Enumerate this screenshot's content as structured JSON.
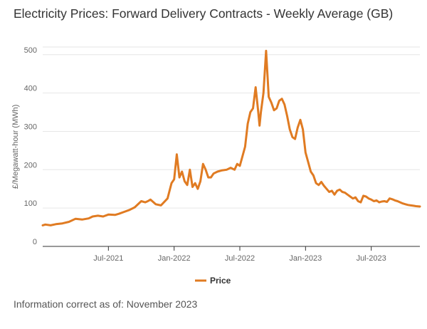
{
  "title": "Electricity Prices: Forward Delivery Contracts - Weekly Average (GB)",
  "footer": "Information correct as of: November 2023",
  "colors": {
    "series": "#e07b22",
    "grid": "#e6e6e6",
    "axis": "#333333"
  },
  "chart_data": {
    "type": "line",
    "title": "Electricity Prices: Forward Delivery Contracts - Weekly Average (GB)",
    "xlabel": "",
    "ylabel": "£/Megawatt-hour (MWh)",
    "ylim": [
      0,
      520
    ],
    "yticks": [
      0,
      100,
      200,
      300,
      400,
      500
    ],
    "xlim": [
      2021.0,
      2023.87
    ],
    "xticks": [
      {
        "label": "Jul-2021",
        "x": 2021.5
      },
      {
        "label": "Jan-2022",
        "x": 2022.0
      },
      {
        "label": "Jul-2022",
        "x": 2022.5
      },
      {
        "label": "Jan-2023",
        "x": 2023.0
      },
      {
        "label": "Jul-2023",
        "x": 2023.5
      }
    ],
    "grid": true,
    "legend": "bottom-center",
    "series": [
      {
        "name": "Price",
        "x": [
          2021.0,
          2021.02,
          2021.06,
          2021.1,
          2021.15,
          2021.2,
          2021.25,
          2021.3,
          2021.35,
          2021.38,
          2021.42,
          2021.46,
          2021.5,
          2021.55,
          2021.58,
          2021.62,
          2021.66,
          2021.7,
          2021.75,
          2021.78,
          2021.8,
          2021.82,
          2021.86,
          2021.9,
          2021.95,
          2021.98,
          2022.0,
          2022.02,
          2022.04,
          2022.06,
          2022.08,
          2022.1,
          2022.12,
          2022.14,
          2022.16,
          2022.18,
          2022.2,
          2022.22,
          2022.24,
          2022.26,
          2022.28,
          2022.3,
          2022.33,
          2022.36,
          2022.4,
          2022.43,
          2022.46,
          2022.48,
          2022.5,
          2022.52,
          2022.54,
          2022.56,
          2022.58,
          2022.6,
          2022.62,
          2022.64,
          2022.65,
          2022.66,
          2022.68,
          2022.7,
          2022.72,
          2022.74,
          2022.76,
          2022.78,
          2022.8,
          2022.82,
          2022.84,
          2022.86,
          2022.88,
          2022.9,
          2022.92,
          2022.94,
          2022.96,
          2022.98,
          2023.0,
          2023.02,
          2023.04,
          2023.06,
          2023.08,
          2023.1,
          2023.12,
          2023.14,
          2023.16,
          2023.18,
          2023.2,
          2023.22,
          2023.24,
          2023.26,
          2023.28,
          2023.3,
          2023.32,
          2023.34,
          2023.36,
          2023.38,
          2023.4,
          2023.42,
          2023.44,
          2023.46,
          2023.48,
          2023.5,
          2023.52,
          2023.54,
          2023.56,
          2023.58,
          2023.6,
          2023.62,
          2023.64,
          2023.66,
          2023.68,
          2023.7,
          2023.72,
          2023.74,
          2023.76,
          2023.78,
          2023.8,
          2023.82,
          2023.84,
          2023.87
        ],
        "y": [
          55,
          57,
          55,
          58,
          60,
          64,
          72,
          70,
          73,
          78,
          80,
          78,
          83,
          82,
          85,
          90,
          95,
          102,
          118,
          115,
          118,
          122,
          110,
          107,
          125,
          165,
          175,
          240,
          180,
          195,
          170,
          160,
          200,
          155,
          165,
          150,
          170,
          215,
          200,
          180,
          180,
          190,
          195,
          198,
          200,
          205,
          200,
          215,
          210,
          235,
          260,
          320,
          350,
          360,
          415,
          350,
          315,
          350,
          400,
          510,
          390,
          375,
          355,
          360,
          380,
          385,
          370,
          340,
          305,
          285,
          280,
          310,
          330,
          305,
          245,
          220,
          195,
          185,
          165,
          160,
          168,
          158,
          150,
          142,
          145,
          135,
          145,
          148,
          142,
          140,
          135,
          130,
          125,
          128,
          118,
          115,
          132,
          130,
          125,
          122,
          118,
          120,
          115,
          117,
          118,
          116,
          125,
          123,
          120,
          118,
          115,
          112,
          110,
          108,
          107,
          106,
          105,
          104
        ]
      }
    ]
  }
}
